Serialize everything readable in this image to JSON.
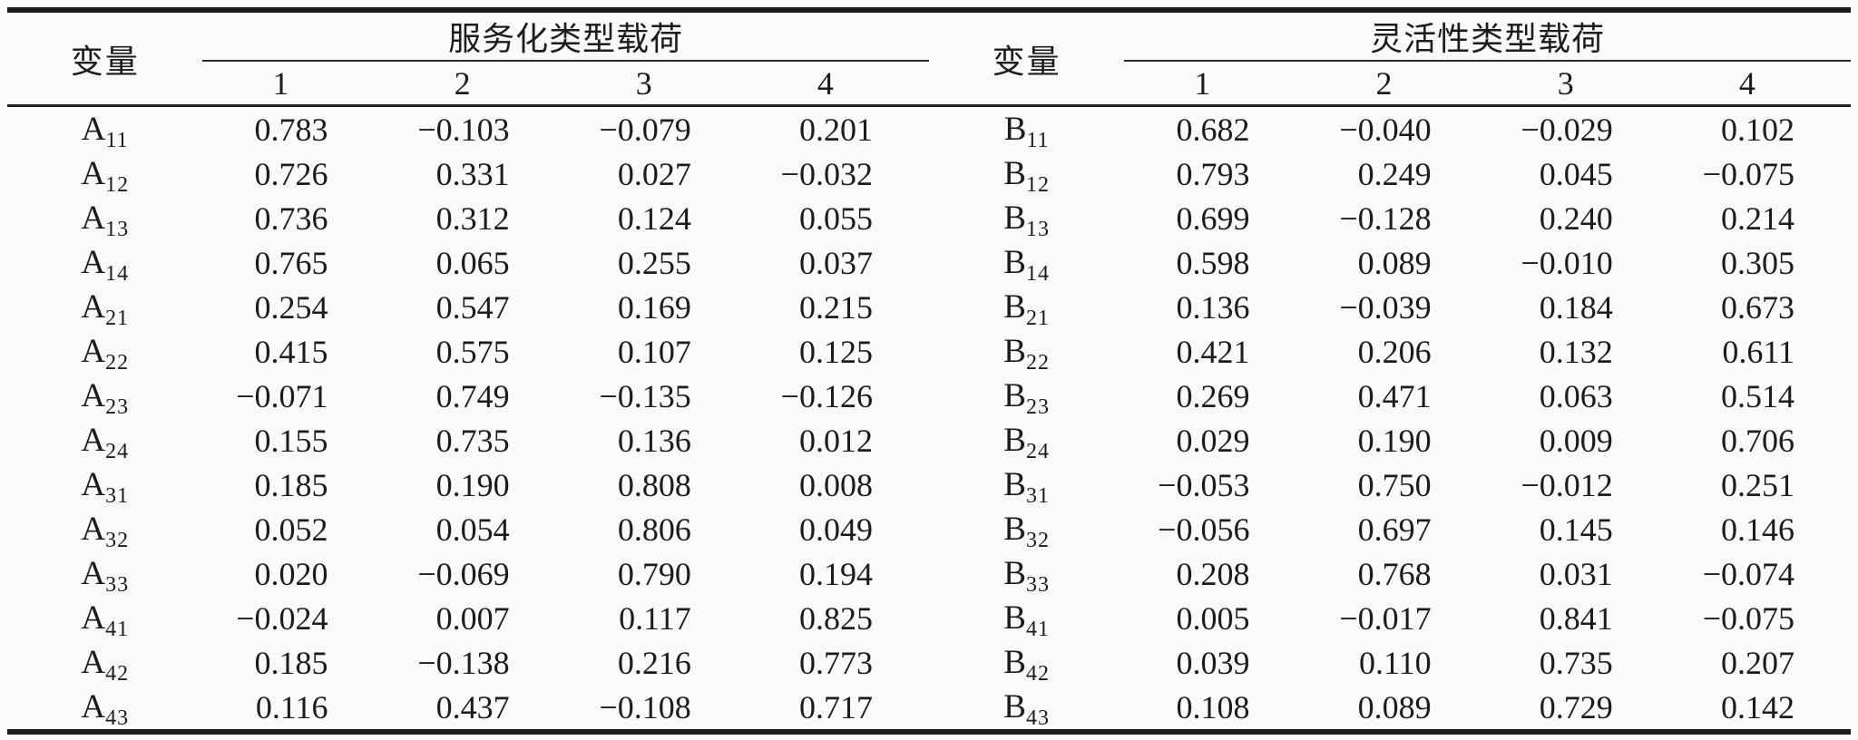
{
  "table": {
    "row_header_label": "变量",
    "left": {
      "spanner": "服务化类型载荷",
      "columns": [
        "1",
        "2",
        "3",
        "4"
      ],
      "rows": [
        {
          "base": "A",
          "sub": "11",
          "values": [
            "0.783",
            "−0.103",
            "−0.079",
            "0.201"
          ]
        },
        {
          "base": "A",
          "sub": "12",
          "values": [
            "0.726",
            "0.331",
            "0.027",
            "−0.032"
          ]
        },
        {
          "base": "A",
          "sub": "13",
          "values": [
            "0.736",
            "0.312",
            "0.124",
            "0.055"
          ]
        },
        {
          "base": "A",
          "sub": "14",
          "values": [
            "0.765",
            "0.065",
            "0.255",
            "0.037"
          ]
        },
        {
          "base": "A",
          "sub": "21",
          "values": [
            "0.254",
            "0.547",
            "0.169",
            "0.215"
          ]
        },
        {
          "base": "A",
          "sub": "22",
          "values": [
            "0.415",
            "0.575",
            "0.107",
            "0.125"
          ]
        },
        {
          "base": "A",
          "sub": "23",
          "values": [
            "−0.071",
            "0.749",
            "−0.135",
            "−0.126"
          ]
        },
        {
          "base": "A",
          "sub": "24",
          "values": [
            "0.155",
            "0.735",
            "0.136",
            "0.012"
          ]
        },
        {
          "base": "A",
          "sub": "31",
          "values": [
            "0.185",
            "0.190",
            "0.808",
            "0.008"
          ]
        },
        {
          "base": "A",
          "sub": "32",
          "values": [
            "0.052",
            "0.054",
            "0.806",
            "0.049"
          ]
        },
        {
          "base": "A",
          "sub": "33",
          "values": [
            "0.020",
            "−0.069",
            "0.790",
            "0.194"
          ]
        },
        {
          "base": "A",
          "sub": "41",
          "values": [
            "−0.024",
            "0.007",
            "0.117",
            "0.825"
          ]
        },
        {
          "base": "A",
          "sub": "42",
          "values": [
            "0.185",
            "−0.138",
            "0.216",
            "0.773"
          ]
        },
        {
          "base": "A",
          "sub": "43",
          "values": [
            "0.116",
            "0.437",
            "−0.108",
            "0.717"
          ]
        }
      ]
    },
    "right": {
      "spanner": "灵活性类型载荷",
      "columns": [
        "1",
        "2",
        "3",
        "4"
      ],
      "rows": [
        {
          "base": "B",
          "sub": "11",
          "values": [
            "0.682",
            "−0.040",
            "−0.029",
            "0.102"
          ]
        },
        {
          "base": "B",
          "sub": "12",
          "values": [
            "0.793",
            "0.249",
            "0.045",
            "−0.075"
          ]
        },
        {
          "base": "B",
          "sub": "13",
          "values": [
            "0.699",
            "−0.128",
            "0.240",
            "0.214"
          ]
        },
        {
          "base": "B",
          "sub": "14",
          "values": [
            "0.598",
            "0.089",
            "−0.010",
            "0.305"
          ]
        },
        {
          "base": "B",
          "sub": "21",
          "values": [
            "0.136",
            "−0.039",
            "0.184",
            "0.673"
          ]
        },
        {
          "base": "B",
          "sub": "22",
          "values": [
            "0.421",
            "0.206",
            "0.132",
            "0.611"
          ]
        },
        {
          "base": "B",
          "sub": "23",
          "values": [
            "0.269",
            "0.471",
            "0.063",
            "0.514"
          ]
        },
        {
          "base": "B",
          "sub": "24",
          "values": [
            "0.029",
            "0.190",
            "0.009",
            "0.706"
          ]
        },
        {
          "base": "B",
          "sub": "31",
          "values": [
            "−0.053",
            "0.750",
            "−0.012",
            "0.251"
          ]
        },
        {
          "base": "B",
          "sub": "32",
          "values": [
            "−0.056",
            "0.697",
            "0.145",
            "0.146"
          ]
        },
        {
          "base": "B",
          "sub": "33",
          "values": [
            "0.208",
            "0.768",
            "0.031",
            "−0.074"
          ]
        },
        {
          "base": "B",
          "sub": "41",
          "values": [
            "0.005",
            "−0.017",
            "0.841",
            "−0.075"
          ]
        },
        {
          "base": "B",
          "sub": "42",
          "values": [
            "0.039",
            "0.110",
            "0.735",
            "0.207"
          ]
        },
        {
          "base": "B",
          "sub": "43",
          "values": [
            "0.108",
            "0.089",
            "0.729",
            "0.142"
          ]
        }
      ]
    }
  }
}
